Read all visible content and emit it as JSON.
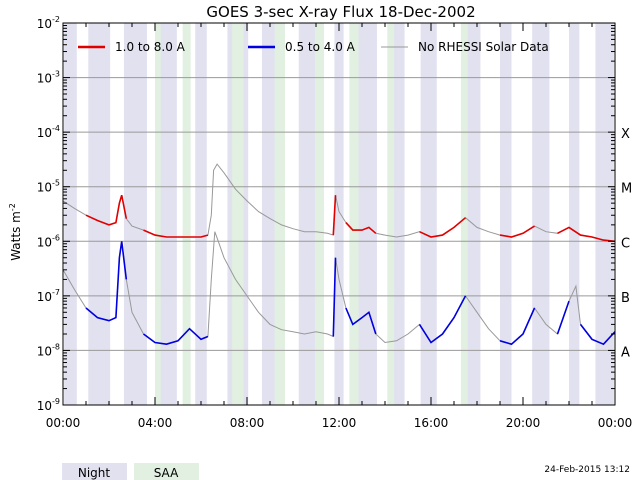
{
  "chart_data": {
    "type": "line",
    "title": "GOES 3-sec X-ray Flux   18-Dec-2002",
    "ylabel": "Watts m",
    "ylabel_exp": "-2",
    "yscale": "log",
    "ylim": [
      1e-09,
      0.01
    ],
    "xlim": [
      "00:00",
      "24:00"
    ],
    "x_ticks": [
      "00:00",
      "04:00",
      "08:00",
      "12:00",
      "16:00",
      "20:00",
      "00:00"
    ],
    "y_ticks": [
      {
        "base": "10",
        "exp": "-2"
      },
      {
        "base": "10",
        "exp": "-3"
      },
      {
        "base": "10",
        "exp": "-4"
      },
      {
        "base": "10",
        "exp": "-5"
      },
      {
        "base": "10",
        "exp": "-6"
      },
      {
        "base": "10",
        "exp": "-7"
      },
      {
        "base": "10",
        "exp": "-8"
      },
      {
        "base": "10",
        "exp": "-9"
      }
    ],
    "flare_classes": [
      {
        "label": "X",
        "value": 0.0001
      },
      {
        "label": "M",
        "value": 1e-05
      },
      {
        "label": "C",
        "value": 1e-06
      },
      {
        "label": "B",
        "value": 1e-07
      },
      {
        "label": "A",
        "value": 1e-08
      }
    ],
    "legend": [
      {
        "label": "1.0 to 8.0 A",
        "color": "#e00000"
      },
      {
        "label": "0.5 to 4.0 A",
        "color": "#0000e0"
      },
      {
        "label": "No RHESSI Solar Data",
        "color": "#999999"
      }
    ],
    "shading_legend": [
      {
        "label": "Night",
        "color": "#e1e1f0"
      },
      {
        "label": "SAA",
        "color": "#e1f0e1"
      }
    ],
    "night_hours": [
      [
        0.05,
        0.6
      ],
      [
        1.1,
        2.05
      ],
      [
        2.65,
        3.65
      ],
      [
        4.15,
        4.95
      ],
      [
        5.75,
        6.25
      ],
      [
        7.15,
        8.05
      ],
      [
        8.65,
        9.25
      ],
      [
        10.25,
        11.05
      ],
      [
        11.8,
        12.2
      ],
      [
        12.85,
        13.65
      ],
      [
        14.35,
        14.85
      ],
      [
        15.55,
        16.25
      ],
      [
        17.4,
        18.15
      ],
      [
        19.0,
        19.5
      ],
      [
        20.4,
        21.15
      ],
      [
        22.0,
        22.45
      ],
      [
        23.15,
        23.95
      ]
    ],
    "saa_hours": [
      [
        4.0,
        4.25
      ],
      [
        5.2,
        5.55
      ],
      [
        7.35,
        7.85
      ],
      [
        9.2,
        9.65
      ],
      [
        10.95,
        11.35
      ],
      [
        12.45,
        12.85
      ],
      [
        14.1,
        14.4
      ],
      [
        17.3,
        17.6
      ]
    ],
    "series": [
      {
        "name": "1.0 to 8.0 A",
        "color": "#e00000",
        "missing_color": "#999999",
        "points": [
          [
            0,
            5.5e-06
          ],
          [
            0.5,
            4e-06
          ],
          [
            1,
            3e-06
          ],
          [
            1.5,
            2.4e-06
          ],
          [
            2,
            2e-06
          ],
          [
            2.3,
            2.2e-06
          ],
          [
            2.45,
            5e-06
          ],
          [
            2.55,
            7e-06
          ],
          [
            2.75,
            2.6e-06
          ],
          [
            3,
            1.9e-06
          ],
          [
            3.5,
            1.6e-06
          ],
          [
            4,
            1.3e-06
          ],
          [
            4.5,
            1.2e-06
          ],
          [
            5,
            1.2e-06
          ],
          [
            5.5,
            1.2e-06
          ],
          [
            6,
            1.2e-06
          ],
          [
            6.3,
            1.3e-06
          ],
          [
            6.45,
            3e-06
          ],
          [
            6.55,
            2e-05
          ],
          [
            6.7,
            2.6e-05
          ],
          [
            7,
            1.8e-05
          ],
          [
            7.5,
            9e-06
          ],
          [
            8,
            5.5e-06
          ],
          [
            8.5,
            3.5e-06
          ],
          [
            9,
            2.6e-06
          ],
          [
            9.5,
            2e-06
          ],
          [
            10,
            1.7e-06
          ],
          [
            10.5,
            1.5e-06
          ],
          [
            11,
            1.5e-06
          ],
          [
            11.5,
            1.4e-06
          ],
          [
            11.75,
            1.3e-06
          ],
          [
            11.85,
            7e-06
          ],
          [
            12,
            3.5e-06
          ],
          [
            12.3,
            2.2e-06
          ],
          [
            12.6,
            1.6e-06
          ],
          [
            13,
            1.6e-06
          ],
          [
            13.3,
            1.8e-06
          ],
          [
            13.6,
            1.4e-06
          ],
          [
            14,
            1.3e-06
          ],
          [
            14.5,
            1.2e-06
          ],
          [
            15,
            1.3e-06
          ],
          [
            15.5,
            1.5e-06
          ],
          [
            16,
            1.2e-06
          ],
          [
            16.5,
            1.3e-06
          ],
          [
            17,
            1.8e-06
          ],
          [
            17.5,
            2.7e-06
          ],
          [
            18,
            1.8e-06
          ],
          [
            18.5,
            1.5e-06
          ],
          [
            19,
            1.3e-06
          ],
          [
            19.5,
            1.2e-06
          ],
          [
            20,
            1.4e-06
          ],
          [
            20.5,
            1.9e-06
          ],
          [
            21,
            1.5e-06
          ],
          [
            21.5,
            1.4e-06
          ],
          [
            22,
            1.8e-06
          ],
          [
            22.5,
            1.3e-06
          ],
          [
            23,
            1.2e-06
          ],
          [
            23.5,
            1.05e-06
          ],
          [
            24,
            1e-06
          ]
        ],
        "missing_hours": [
          [
            0,
            0.9
          ],
          [
            2.85,
            3.5
          ],
          [
            6.35,
            8.3
          ],
          [
            8.7,
            11.7
          ],
          [
            12.0,
            12.3
          ],
          [
            13.8,
            14.2
          ],
          [
            15.0,
            15.4
          ],
          [
            16.6,
            17.0
          ],
          [
            17.7,
            18.6
          ],
          [
            20.6,
            21.1
          ],
          [
            22.1,
            22.4
          ]
        ]
      },
      {
        "name": "0.5 to 4.0 A",
        "color": "#0000e0",
        "missing_color": "#999999",
        "points": [
          [
            0,
            3e-07
          ],
          [
            0.5,
            1.3e-07
          ],
          [
            1,
            6e-08
          ],
          [
            1.5,
            4e-08
          ],
          [
            2,
            3.5e-08
          ],
          [
            2.3,
            4e-08
          ],
          [
            2.45,
            5e-07
          ],
          [
            2.55,
            1e-06
          ],
          [
            2.75,
            2e-07
          ],
          [
            3,
            5e-08
          ],
          [
            3.5,
            2e-08
          ],
          [
            4,
            1.4e-08
          ],
          [
            4.5,
            1.3e-08
          ],
          [
            5,
            1.5e-08
          ],
          [
            5.5,
            2.5e-08
          ],
          [
            6,
            1.6e-08
          ],
          [
            6.3,
            1.8e-08
          ],
          [
            6.45,
            2e-07
          ],
          [
            6.6,
            1.5e-06
          ],
          [
            6.75,
            1e-06
          ],
          [
            7,
            5e-07
          ],
          [
            7.5,
            2e-07
          ],
          [
            8,
            1e-07
          ],
          [
            8.5,
            5e-08
          ],
          [
            9,
            3e-08
          ],
          [
            9.5,
            2.4e-08
          ],
          [
            10,
            2.2e-08
          ],
          [
            10.5,
            2e-08
          ],
          [
            11,
            2.2e-08
          ],
          [
            11.5,
            2e-08
          ],
          [
            11.75,
            1.8e-08
          ],
          [
            11.85,
            5e-07
          ],
          [
            12,
            2e-07
          ],
          [
            12.3,
            6e-08
          ],
          [
            12.6,
            3e-08
          ],
          [
            13,
            4e-08
          ],
          [
            13.3,
            5e-08
          ],
          [
            13.6,
            2e-08
          ],
          [
            14,
            1.4e-08
          ],
          [
            14.5,
            1.5e-08
          ],
          [
            15,
            2e-08
          ],
          [
            15.5,
            3e-08
          ],
          [
            16,
            1.4e-08
          ],
          [
            16.5,
            2e-08
          ],
          [
            17,
            4e-08
          ],
          [
            17.5,
            1e-07
          ],
          [
            18,
            5e-08
          ],
          [
            18.5,
            2.5e-08
          ],
          [
            19,
            1.5e-08
          ],
          [
            19.5,
            1.3e-08
          ],
          [
            20,
            2e-08
          ],
          [
            20.5,
            6e-08
          ],
          [
            21,
            3e-08
          ],
          [
            21.5,
            2e-08
          ],
          [
            22,
            8e-08
          ],
          [
            22.3,
            1.5e-07
          ],
          [
            22.5,
            3e-08
          ],
          [
            23,
            1.6e-08
          ],
          [
            23.5,
            1.3e-08
          ],
          [
            24,
            2.2e-08
          ]
        ],
        "missing_hours": [
          [
            0,
            0.9
          ],
          [
            2.85,
            3.5
          ],
          [
            6.35,
            8.3
          ],
          [
            8.7,
            11.7
          ],
          [
            12.0,
            12.3
          ],
          [
            13.8,
            14.2
          ],
          [
            15.0,
            15.4
          ],
          [
            16.6,
            17.0
          ],
          [
            17.7,
            18.6
          ],
          [
            20.6,
            21.1
          ],
          [
            22.1,
            22.4
          ]
        ]
      }
    ]
  },
  "footer": {
    "timestamp": "24-Feb-2015 13:12"
  }
}
